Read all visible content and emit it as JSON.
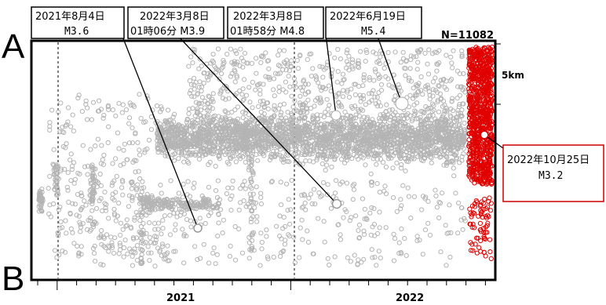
{
  "chart_data": {
    "type": "scatter",
    "section_start": "A",
    "section_end": "B",
    "count_label": "N=11082",
    "scale_label": "5km",
    "x_tick_labels": [
      "2021",
      "2022"
    ],
    "xlim": [
      "2020-11-01",
      "2022-11-15"
    ],
    "colors": {
      "earlier_events": "#b4b4b4",
      "recent_events": "#e00000",
      "annotation_line": "#000000",
      "recent_box_border": "#d00000"
    },
    "annotations": [
      {
        "date_line": "2021年8月4日",
        "detail_line": "M3.6",
        "date": "2021-08-04",
        "magnitude": 3.6,
        "depth_fraction": 0.82
      },
      {
        "date_line": "2022年3月8日",
        "detail_line": "01時06分 M3.9",
        "date": "2022-03-08",
        "magnitude": 3.9,
        "depth_fraction": 0.7
      },
      {
        "date_line": "2022年3月8日",
        "detail_line": "01時58分 M4.8",
        "date": "2022-03-08",
        "magnitude": 4.8,
        "depth_fraction": 0.3
      },
      {
        "date_line": "2022年6月19日",
        "detail_line": "M5.4",
        "date": "2022-06-19",
        "magnitude": 5.4,
        "depth_fraction": 0.25
      },
      {
        "date_line": "2022年10月25日",
        "detail_line": "M3.2",
        "date": "2022-10-25",
        "magnitude": 3.2,
        "depth_fraction": 0.43,
        "highlight": "red"
      }
    ],
    "marked_dates": [
      "2020-12-01",
      "2021-12-01"
    ]
  }
}
